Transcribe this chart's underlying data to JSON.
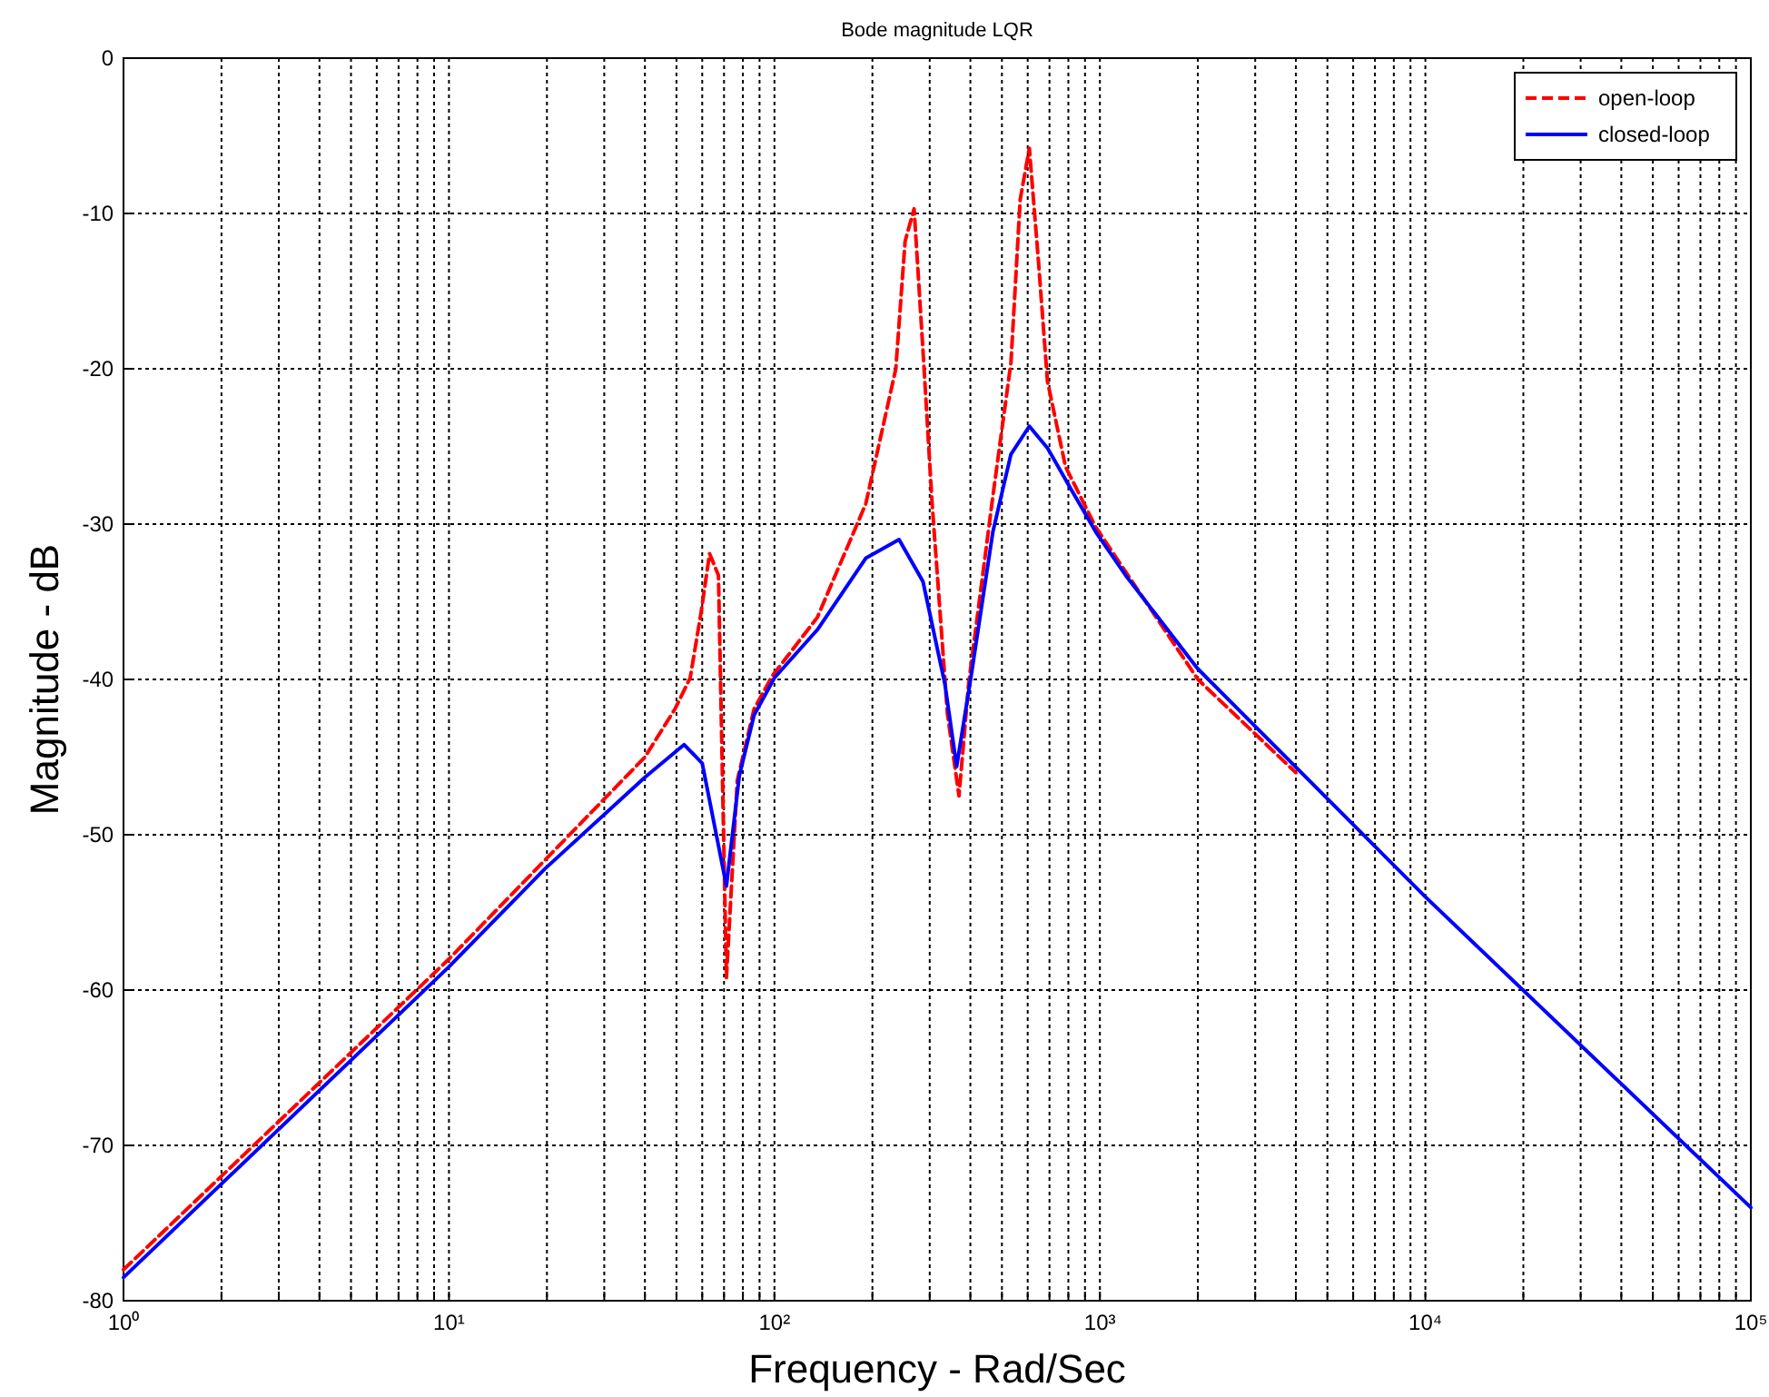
{
  "chart_data": {
    "type": "line",
    "title": "Bode magnitude LQR",
    "xlabel": "Frequency - Rad/Sec",
    "ylabel": "Magnitude - dB",
    "log": "x",
    "grid": true,
    "legend": "top right",
    "xlim": [
      1,
      100000
    ],
    "ylim": [
      -80,
      0
    ],
    "xticks": [
      {
        "value": 1,
        "label": "10⁰"
      },
      {
        "value": 2,
        "label": null
      },
      {
        "value": 3,
        "label": null
      },
      {
        "value": 4,
        "label": null
      },
      {
        "value": 5,
        "label": null
      },
      {
        "value": 6,
        "label": null
      },
      {
        "value": 7,
        "label": null
      },
      {
        "value": 8,
        "label": null
      },
      {
        "value": 9,
        "label": null
      },
      {
        "value": 10,
        "label": "10¹"
      },
      {
        "value": 20,
        "label": null
      },
      {
        "value": 30,
        "label": null
      },
      {
        "value": 40,
        "label": null
      },
      {
        "value": 50,
        "label": null
      },
      {
        "value": 60,
        "label": null
      },
      {
        "value": 70,
        "label": null
      },
      {
        "value": 80,
        "label": null
      },
      {
        "value": 90,
        "label": null
      },
      {
        "value": 100,
        "label": "10²"
      },
      {
        "value": 200,
        "label": null
      },
      {
        "value": 300,
        "label": null
      },
      {
        "value": 400,
        "label": null
      },
      {
        "value": 500,
        "label": null
      },
      {
        "value": 600,
        "label": null
      },
      {
        "value": 700,
        "label": null
      },
      {
        "value": 800,
        "label": null
      },
      {
        "value": 900,
        "label": null
      },
      {
        "value": 1000,
        "label": "10³"
      },
      {
        "value": 2000,
        "label": null
      },
      {
        "value": 3000,
        "label": null
      },
      {
        "value": 4000,
        "label": null
      },
      {
        "value": 5000,
        "label": null
      },
      {
        "value": 6000,
        "label": null
      },
      {
        "value": 7000,
        "label": null
      },
      {
        "value": 8000,
        "label": null
      },
      {
        "value": 9000,
        "label": null
      },
      {
        "value": 10000,
        "label": "10⁴"
      },
      {
        "value": 20000,
        "label": null
      },
      {
        "value": 30000,
        "label": null
      },
      {
        "value": 40000,
        "label": null
      },
      {
        "value": 50000,
        "label": null
      },
      {
        "value": 60000,
        "label": null
      },
      {
        "value": 70000,
        "label": null
      },
      {
        "value": 80000,
        "label": null
      },
      {
        "value": 90000,
        "label": null
      },
      {
        "value": 100000,
        "label": "10⁵"
      }
    ],
    "yticks": [
      -80,
      -70,
      -60,
      -50,
      -40,
      -30,
      -20,
      -10,
      0
    ],
    "series": [
      {
        "name": "open-loop",
        "color": "#ff0000",
        "line_style": "dashed",
        "x": [
          1,
          10,
          20,
          40,
          49.5,
          55.1,
          59.5,
          63.2,
          67.3,
          71.2,
          76.9,
          86.6,
          98.3,
          135.5,
          190.8,
          236,
          252,
          268.6,
          286,
          305,
          340,
          369,
          395,
          469,
          533,
          569,
          607,
          647,
          690,
          784,
          971,
          2000,
          4000
        ],
        "values": [
          -78,
          -58,
          -51.5,
          -45,
          -41.9,
          -39.9,
          -35.7,
          -31.9,
          -33.3,
          -59.2,
          -46.5,
          -41.9,
          -39.8,
          -36,
          -28.7,
          -20,
          -11.8,
          -9.7,
          -18.8,
          -28.6,
          -42.2,
          -47.5,
          -40.3,
          -28.2,
          -19.6,
          -9.1,
          -5.8,
          -13,
          -20.8,
          -26.3,
          -30.2,
          -40,
          -46
        ]
      },
      {
        "name": "closed-loop",
        "color": "#0000ff",
        "line_style": "solid",
        "x": [
          1,
          10,
          19.7,
          40,
          52.8,
          60,
          71.2,
          78,
          86.6,
          100,
          135.5,
          190.8,
          241.5,
          286,
          334,
          363,
          404,
          469,
          533,
          607,
          690,
          818,
          971,
          1200,
          1995,
          10000,
          100000
        ],
        "values": [
          -78.5,
          -58.5,
          -52.2,
          -46.3,
          -44.2,
          -45.4,
          -53.3,
          -46.2,
          -42.3,
          -39.9,
          -36.8,
          -32.2,
          -31,
          -33.7,
          -40.3,
          -45.6,
          -39.5,
          -30.5,
          -25.5,
          -23.7,
          -25.1,
          -27.8,
          -30.5,
          -33.3,
          -39.3,
          -54,
          -74
        ]
      }
    ]
  }
}
